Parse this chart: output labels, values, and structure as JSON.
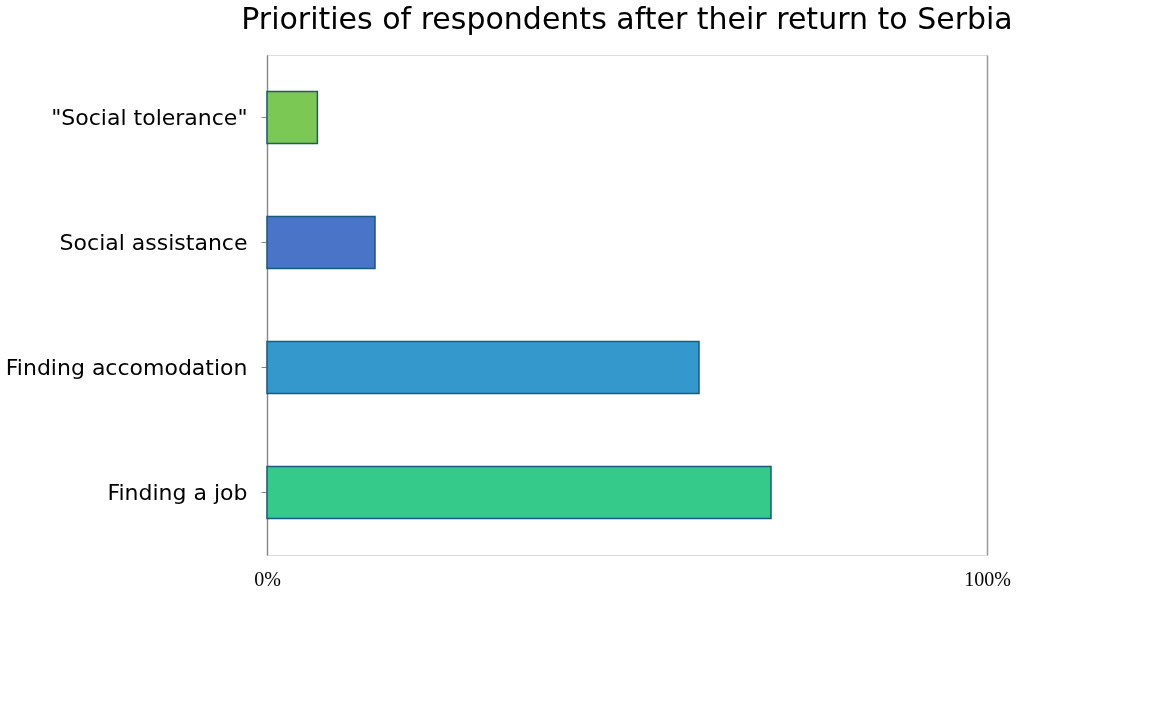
{
  "chart_data": {
    "type": "bar",
    "orientation": "horizontal",
    "title": "Priorities of respondents after their return to Serbia",
    "categories": [
      "\"Social tolerance\"",
      "Social assistance",
      "Finding accomodation",
      "Finding a job"
    ],
    "values": [
      7,
      15,
      60,
      70
    ],
    "colors": [
      "#7cc855",
      "#4a74c8",
      "#3498cc",
      "#35c98a"
    ],
    "xlim": [
      0,
      100
    ],
    "xticks": [
      {
        "value": 0,
        "label": "0%"
      },
      {
        "value": 100,
        "label": "100%"
      }
    ],
    "grid": "x"
  }
}
